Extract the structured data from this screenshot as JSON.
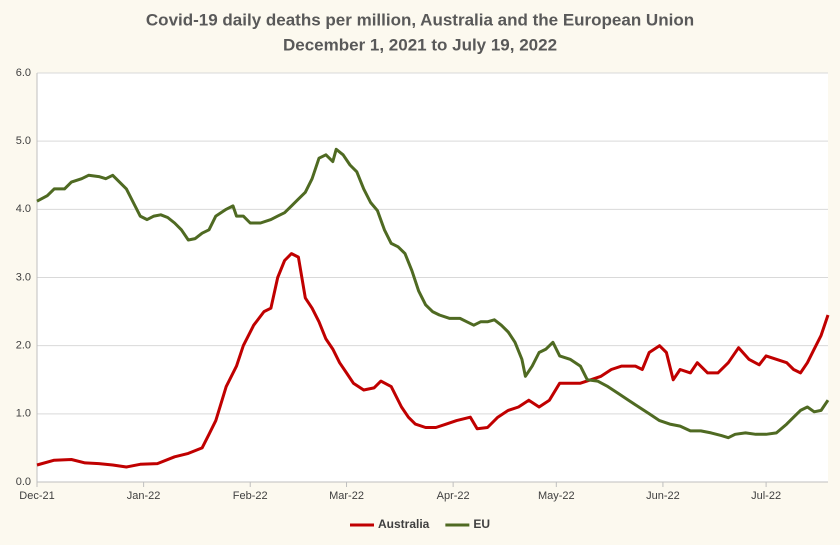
{
  "chart_data": {
    "type": "line",
    "title": "Covid-19 daily deaths per million, Australia and the European Union",
    "subtitle": "December 1, 2021 to July 19, 2022",
    "xlim": [
      0,
      230
    ],
    "xticks": [
      {
        "value": 0,
        "label": "Dec-21"
      },
      {
        "value": 31,
        "label": "Jan-22"
      },
      {
        "value": 62,
        "label": "Feb-22"
      },
      {
        "value": 90,
        "label": "Mar-22"
      },
      {
        "value": 121,
        "label": "Apr-22"
      },
      {
        "value": 151,
        "label": "May-22"
      },
      {
        "value": 182,
        "label": "Jun-22"
      },
      {
        "value": 212,
        "label": "Jul-22"
      }
    ],
    "ylim": [
      0,
      6
    ],
    "yticks": [
      {
        "value": 0,
        "label": "0.0"
      },
      {
        "value": 1,
        "label": "1.0"
      },
      {
        "value": 2,
        "label": "2.0"
      },
      {
        "value": 3,
        "label": "3.0"
      },
      {
        "value": 4,
        "label": "4.0"
      },
      {
        "value": 5,
        "label": "5.0"
      },
      {
        "value": 6,
        "label": "6.0"
      }
    ],
    "grid": true,
    "legend": "bottom",
    "series": [
      {
        "name": "Australia",
        "color": "#c00000",
        "x": [
          0,
          5,
          10,
          14,
          18,
          22,
          26,
          30,
          35,
          40,
          44,
          48,
          50,
          52,
          55,
          58,
          60,
          63,
          66,
          68,
          70,
          72,
          74,
          76,
          78,
          80,
          82,
          84,
          86,
          88,
          90,
          92,
          95,
          98,
          100,
          103,
          106,
          108,
          110,
          113,
          116,
          119,
          122,
          126,
          128,
          131,
          134,
          137,
          140,
          143,
          146,
          149,
          152,
          155,
          158,
          161,
          164,
          167,
          170,
          174,
          176,
          178,
          181,
          183,
          185,
          187,
          190,
          192,
          195,
          198,
          201,
          204,
          207,
          210,
          212,
          215,
          218,
          220,
          222,
          224,
          226,
          228,
          230
        ],
        "values": [
          0.25,
          0.32,
          0.33,
          0.28,
          0.27,
          0.25,
          0.22,
          0.26,
          0.27,
          0.37,
          0.42,
          0.5,
          0.7,
          0.9,
          1.4,
          1.7,
          2.0,
          2.3,
          2.5,
          2.55,
          3.0,
          3.25,
          3.35,
          3.3,
          2.7,
          2.55,
          2.35,
          2.1,
          1.95,
          1.75,
          1.6,
          1.45,
          1.35,
          1.38,
          1.48,
          1.4,
          1.1,
          0.95,
          0.85,
          0.8,
          0.8,
          0.85,
          0.9,
          0.95,
          0.78,
          0.8,
          0.95,
          1.05,
          1.1,
          1.2,
          1.1,
          1.2,
          1.45,
          1.45,
          1.45,
          1.5,
          1.55,
          1.65,
          1.7,
          1.7,
          1.65,
          1.9,
          2.0,
          1.9,
          1.5,
          1.65,
          1.6,
          1.75,
          1.6,
          1.6,
          1.75,
          1.97,
          1.8,
          1.72,
          1.85,
          1.8,
          1.75,
          1.65,
          1.6,
          1.75,
          1.95,
          2.15,
          2.45
        ]
      },
      {
        "name": "EU",
        "color": "#4f6a22",
        "x": [
          0,
          3,
          5,
          8,
          10,
          13,
          15,
          18,
          20,
          22,
          24,
          26,
          28,
          30,
          32,
          34,
          36,
          38,
          40,
          42,
          44,
          46,
          48,
          50,
          52,
          55,
          57,
          58,
          60,
          62,
          65,
          68,
          70,
          72,
          74,
          76,
          78,
          80,
          82,
          84,
          86,
          87,
          89,
          91,
          93,
          95,
          97,
          99,
          101,
          103,
          105,
          107,
          109,
          111,
          113,
          115,
          117,
          120,
          123,
          125,
          127,
          129,
          131,
          133,
          135,
          137,
          139,
          141,
          142,
          144,
          146,
          148,
          150,
          152,
          155,
          158,
          160,
          163,
          166,
          169,
          172,
          175,
          178,
          181,
          184,
          187,
          190,
          193,
          196,
          199,
          201,
          203,
          206,
          209,
          212,
          215,
          218,
          220,
          222,
          224,
          226,
          228,
          230
        ],
        "values": [
          4.12,
          4.2,
          4.3,
          4.3,
          4.4,
          4.45,
          4.5,
          4.48,
          4.45,
          4.5,
          4.4,
          4.3,
          4.1,
          3.9,
          3.85,
          3.9,
          3.92,
          3.88,
          3.8,
          3.7,
          3.55,
          3.57,
          3.65,
          3.7,
          3.9,
          4.0,
          4.05,
          3.9,
          3.9,
          3.8,
          3.8,
          3.85,
          3.9,
          3.95,
          4.05,
          4.15,
          4.25,
          4.45,
          4.75,
          4.8,
          4.7,
          4.88,
          4.8,
          4.65,
          4.55,
          4.3,
          4.1,
          3.98,
          3.7,
          3.5,
          3.45,
          3.35,
          3.1,
          2.8,
          2.6,
          2.5,
          2.45,
          2.4,
          2.4,
          2.35,
          2.3,
          2.35,
          2.35,
          2.38,
          2.3,
          2.2,
          2.05,
          1.8,
          1.55,
          1.7,
          1.9,
          1.95,
          2.05,
          1.85,
          1.8,
          1.7,
          1.5,
          1.48,
          1.4,
          1.3,
          1.2,
          1.1,
          1.0,
          0.9,
          0.85,
          0.82,
          0.75,
          0.75,
          0.72,
          0.68,
          0.65,
          0.7,
          0.72,
          0.7,
          0.7,
          0.72,
          0.85,
          0.95,
          1.05,
          1.1,
          1.03,
          1.05,
          1.2
        ]
      }
    ]
  }
}
